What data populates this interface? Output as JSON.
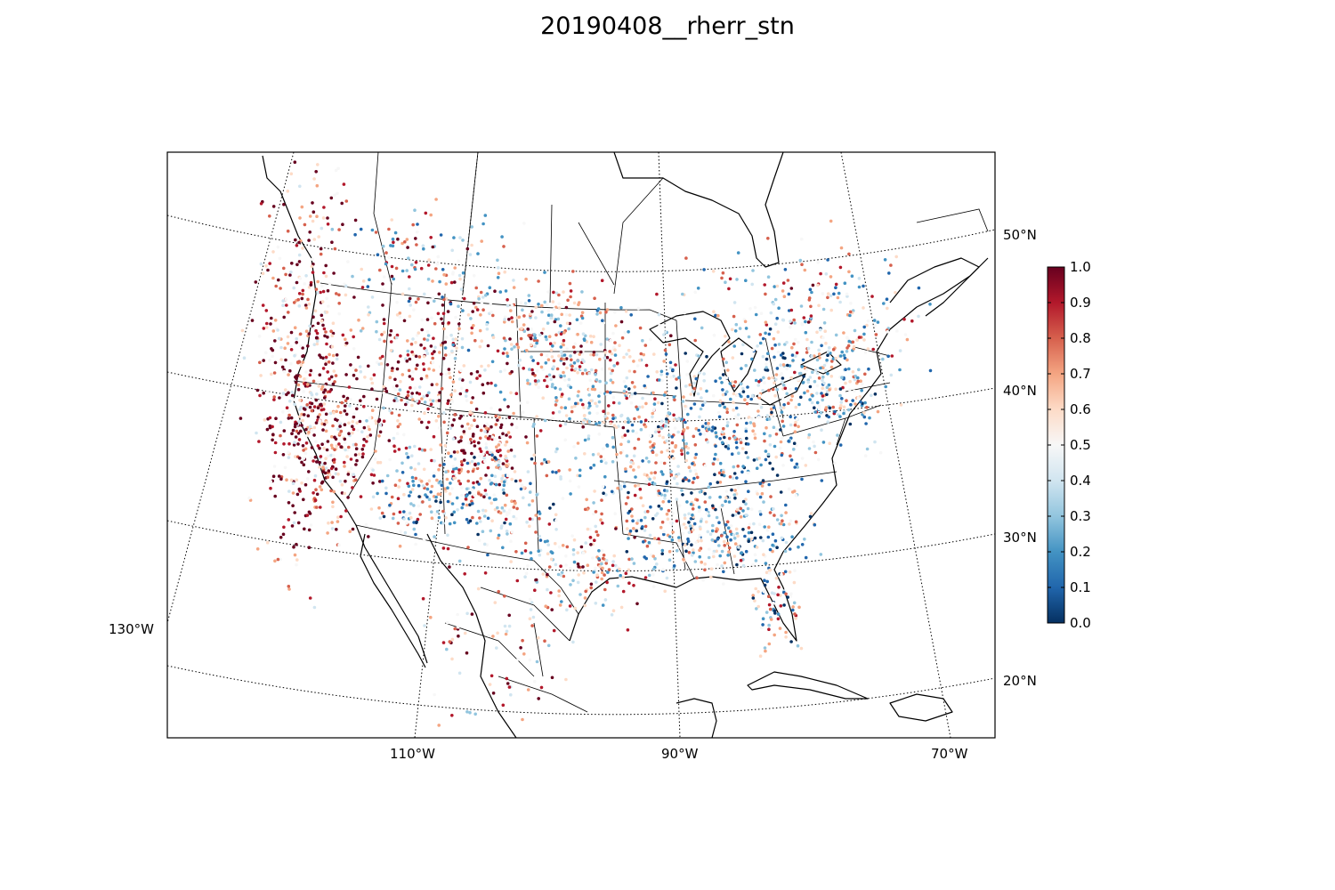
{
  "title": "20190408__rherr_stn",
  "map": {
    "parallels": [
      {
        "label": "50°N"
      },
      {
        "label": "40°N"
      },
      {
        "label": "30°N"
      },
      {
        "label": "20°N"
      }
    ],
    "meridians": [
      {
        "label": "130°W"
      },
      {
        "label": "110°W"
      },
      {
        "label": "90°W"
      },
      {
        "label": "70°W"
      }
    ],
    "colormap": "RdBu_r",
    "colorbar": {
      "min": 0.0,
      "max": 1.0,
      "ticks": [
        "0.0",
        "0.1",
        "0.2",
        "0.3",
        "0.4",
        "0.5",
        "0.6",
        "0.7",
        "0.8",
        "0.9",
        "1.0"
      ],
      "colors": [
        "#053061",
        "#2166ac",
        "#4393c3",
        "#92c5de",
        "#d1e5f0",
        "#f7f7f7",
        "#fddbc7",
        "#f4a582",
        "#d6604d",
        "#b2182b",
        "#67001f"
      ]
    }
  }
}
